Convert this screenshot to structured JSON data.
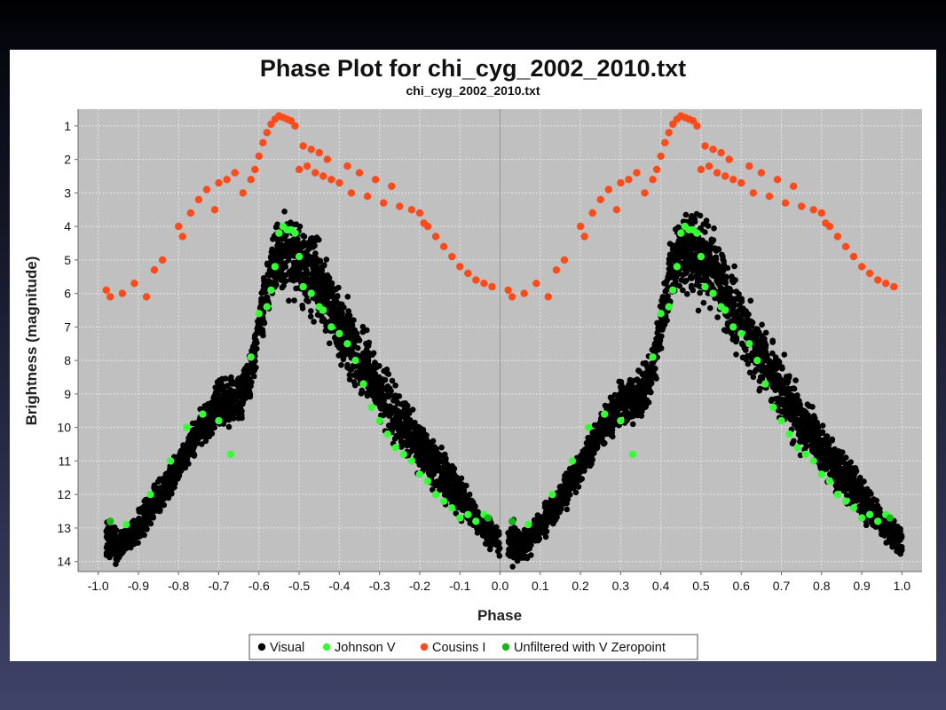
{
  "chart_data": {
    "type": "scatter",
    "title": "Phase Plot for chi_cyg_2002_2010.txt",
    "subtitle": "chi_cyg_2002_2010.txt",
    "xlabel": "Phase",
    "ylabel": "Brightness (magnitude)",
    "xlim": [
      -1.05,
      1.05
    ],
    "ylim": [
      14.3,
      0.5
    ],
    "y_reversed": true,
    "xticks": [
      "-1.0",
      "-0.9",
      "-0.8",
      "-0.7",
      "-0.6",
      "-0.5",
      "-0.4",
      "-0.3",
      "-0.2",
      "-0.1",
      "0.0",
      "0.1",
      "0.2",
      "0.3",
      "0.4",
      "0.5",
      "0.6",
      "0.7",
      "0.8",
      "0.9",
      "1.0"
    ],
    "yticks": [
      "1",
      "2",
      "3",
      "4",
      "5",
      "6",
      "7",
      "8",
      "9",
      "10",
      "11",
      "12",
      "13",
      "14"
    ],
    "grid": true,
    "zero_line": 0.0,
    "legend_position": "bottom-center",
    "colors": {
      "plot_bg": "#c0c0c0",
      "grid": "#e6e6e6",
      "zero_line": "#8a8af0"
    },
    "series": [
      {
        "name": "Visual",
        "color": "#000000",
        "description_band": "dense cloud",
        "phase": [
          -0.98,
          -0.95,
          -0.9,
          -0.85,
          -0.8,
          -0.75,
          -0.7,
          -0.67,
          -0.64,
          -0.62,
          -0.6,
          -0.58,
          -0.56,
          -0.54,
          -0.52,
          -0.5,
          -0.48,
          -0.46,
          -0.44,
          -0.42,
          -0.4,
          -0.35,
          -0.3,
          -0.25,
          -0.2,
          -0.15,
          -0.1,
          -0.05,
          0.0
        ],
        "magnitude_bright_edge": [
          12.4,
          12.9,
          12.3,
          11.4,
          10.5,
          9.4,
          8.3,
          8.2,
          8.0,
          7.4,
          6.0,
          4.5,
          3.7,
          3.3,
          3.1,
          3.4,
          3.6,
          4.0,
          4.4,
          5.0,
          5.5,
          6.5,
          7.6,
          8.6,
          9.6,
          10.4,
          11.2,
          12.3,
          12.8
        ],
        "magnitude_faint_edge": [
          14.3,
          14.2,
          13.6,
          12.8,
          11.8,
          10.8,
          10.2,
          10.3,
          9.8,
          9.2,
          8.2,
          7.0,
          6.2,
          6.3,
          6.5,
          6.6,
          6.8,
          7.1,
          7.5,
          7.9,
          8.4,
          9.3,
          10.2,
          11.0,
          11.7,
          12.3,
          12.9,
          13.4,
          14.1
        ]
      },
      {
        "name": "Johnson V",
        "color": "#33ff33",
        "phase": [
          -0.93,
          -0.87,
          -0.82,
          -0.78,
          -0.74,
          -0.7,
          -0.67,
          -0.62,
          -0.6,
          -0.58,
          -0.57,
          -0.56,
          -0.55,
          -0.54,
          -0.53,
          -0.52,
          -0.51,
          -0.5,
          -0.49,
          -0.47,
          -0.45,
          -0.44,
          -0.42,
          -0.4,
          -0.38,
          -0.36,
          -0.34,
          -0.32,
          -0.3,
          -0.28,
          -0.26,
          -0.24,
          -0.22,
          -0.2,
          -0.18,
          -0.16,
          -0.14,
          -0.12,
          -0.1,
          -0.08,
          -0.06,
          -0.04
        ],
        "magnitude": [
          12.9,
          12.0,
          11.0,
          10.0,
          9.6,
          9.8,
          10.8,
          7.9,
          6.6,
          6.4,
          5.9,
          5.2,
          4.2,
          4.0,
          4.1,
          4.1,
          4.2,
          4.9,
          5.8,
          6.0,
          6.4,
          6.5,
          7.0,
          7.2,
          7.5,
          8.0,
          8.7,
          9.4,
          9.8,
          10.2,
          10.6,
          10.8,
          11.0,
          11.4,
          11.6,
          12.0,
          12.2,
          12.4,
          12.7,
          12.6,
          12.8,
          12.6
        ]
      },
      {
        "name": "Cousins I",
        "color": "#ff4a1a",
        "phase": [
          -0.98,
          -0.97,
          -0.94,
          -0.91,
          -0.88,
          -0.86,
          -0.84,
          -0.8,
          -0.79,
          -0.77,
          -0.75,
          -0.73,
          -0.71,
          -0.7,
          -0.68,
          -0.66,
          -0.64,
          -0.62,
          -0.61,
          -0.6,
          -0.59,
          -0.58,
          -0.57,
          -0.56,
          -0.55,
          -0.54,
          -0.53,
          -0.52,
          -0.51,
          -0.5,
          -0.49,
          -0.48,
          -0.47,
          -0.46,
          -0.45,
          -0.44,
          -0.43,
          -0.42,
          -0.4,
          -0.38,
          -0.37,
          -0.35,
          -0.33,
          -0.31,
          -0.29,
          -0.27,
          -0.25,
          -0.22,
          -0.2,
          -0.19,
          -0.18,
          -0.16,
          -0.14,
          -0.12,
          -0.1,
          -0.08,
          -0.06,
          -0.04,
          -0.02
        ],
        "magnitude": [
          5.9,
          6.1,
          6.0,
          5.7,
          6.1,
          5.3,
          5.0,
          4.0,
          4.3,
          3.6,
          3.2,
          2.9,
          3.5,
          2.7,
          2.6,
          2.4,
          3.0,
          2.6,
          2.3,
          1.9,
          1.5,
          1.2,
          0.95,
          0.8,
          0.7,
          0.75,
          0.8,
          0.85,
          1.0,
          2.3,
          1.6,
          2.2,
          1.7,
          2.4,
          1.8,
          2.5,
          2.0,
          2.6,
          2.7,
          2.2,
          3.0,
          2.4,
          3.1,
          2.6,
          3.3,
          2.8,
          3.4,
          3.5,
          3.6,
          3.9,
          4.0,
          4.3,
          4.6,
          4.9,
          5.2,
          5.4,
          5.6,
          5.7,
          5.8
        ]
      },
      {
        "name": "Unfiltered with V Zeropoint",
        "color": "#16b816",
        "phase": [
          -0.97,
          -0.03
        ],
        "magnitude": [
          12.8,
          12.7
        ]
      }
    ]
  }
}
